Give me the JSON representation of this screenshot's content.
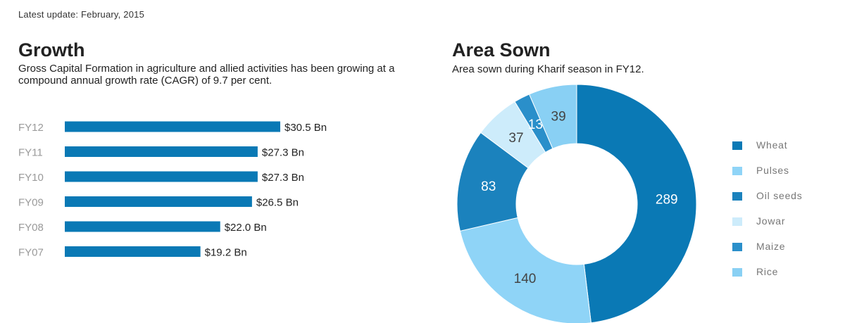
{
  "header": {
    "update_text": "Latest update: February, 2015"
  },
  "growth": {
    "title": "Growth",
    "subtitle": "Gross Capital Formation in agriculture and allied activities has been growing at a compound annual growth rate (CAGR) of 9.7 per cent."
  },
  "area": {
    "title": "Area Sown",
    "subtitle": "Area sown during Kharif season in FY12."
  },
  "chart_data": [
    {
      "type": "bar",
      "orientation": "horizontal",
      "categories": [
        "FY12",
        "FY11",
        "FY10",
        "FY09",
        "FY08",
        "FY07"
      ],
      "values": [
        30.5,
        27.3,
        27.3,
        26.5,
        22.0,
        19.2
      ],
      "value_labels": [
        "$30.5 Bn",
        "$27.3 Bn",
        "$27.3 Bn",
        "$26.5 Bn",
        "$22.0 Bn",
        "$19.2 Bn"
      ],
      "color": "#0a79b5",
      "grid": false
    },
    {
      "type": "pie",
      "donut": true,
      "categories": [
        "Wheat",
        "Pulses",
        "Oil seeds",
        "Jowar",
        "Maize",
        "Rice"
      ],
      "values": [
        289,
        140,
        83,
        37,
        13,
        39
      ],
      "colors": [
        "#0a79b5",
        "#8fd4f7",
        "#1b82bd",
        "#cdecfb",
        "#2a8fca",
        "#89d0f4"
      ],
      "legend_position": "right"
    }
  ]
}
